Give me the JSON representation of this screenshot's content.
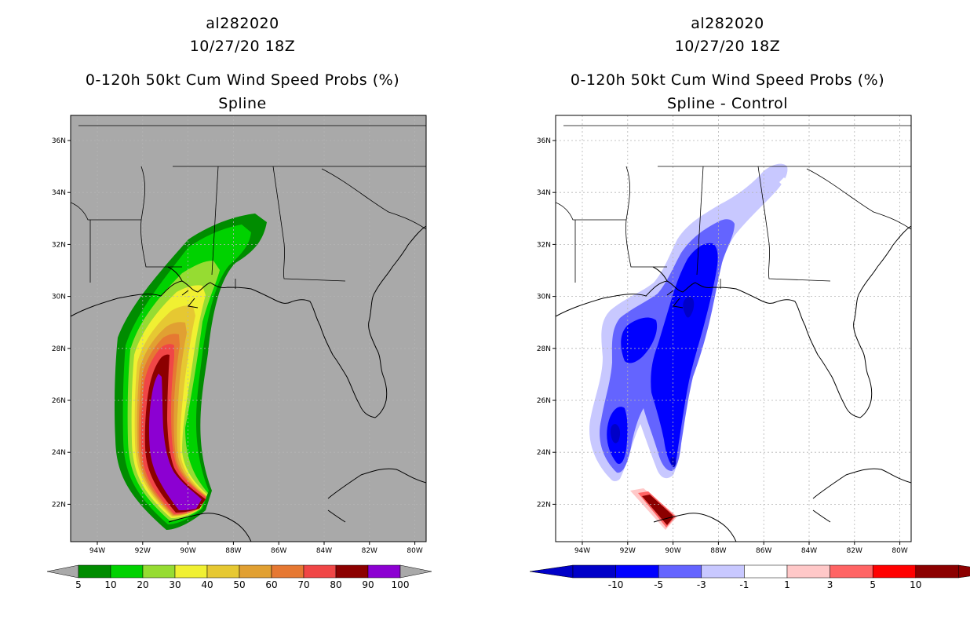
{
  "left": {
    "storm_id": "al282020",
    "datetime": "10/27/20 18Z",
    "product": "0-120h 50kt Cum Wind Speed Probs (%)",
    "subtitle": "Spline",
    "colorbar": {
      "colors": [
        "#008c00",
        "#00d200",
        "#96dc32",
        "#f0f032",
        "#e6c832",
        "#e1a032",
        "#e67832",
        "#f04646",
        "#8c0000",
        "#8c00d2"
      ],
      "labels": [
        "5",
        "10",
        "20",
        "30",
        "40",
        "50",
        "60",
        "70",
        "80",
        "90",
        "100"
      ]
    }
  },
  "right": {
    "storm_id": "al282020",
    "datetime": "10/27/20 18Z",
    "product": "0-120h 50kt Cum Wind Speed Probs (%)",
    "subtitle": "Spline - Control",
    "colorbar": {
      "colors": [
        "#0000c8",
        "#0000ff",
        "#6464ff",
        "#c8c8ff",
        "#ffffff",
        "#ffc8c8",
        "#ff6464",
        "#ff0000",
        "#8c0000"
      ],
      "labels": [
        "-10",
        "-5",
        "-3",
        "-1",
        "1",
        "3",
        "5",
        "10"
      ]
    }
  },
  "axes": {
    "lat_labels": [
      "36N",
      "34N",
      "32N",
      "30N",
      "28N",
      "26N",
      "24N",
      "22N"
    ],
    "lon_labels": [
      "94W",
      "92W",
      "90W",
      "88W",
      "86W",
      "84W",
      "82W",
      "80W"
    ]
  },
  "map_colors": {
    "left_background": "#a9a9a9",
    "right_background": "#ffffff",
    "coast": "#000000",
    "grid": "#b4b4b4"
  }
}
